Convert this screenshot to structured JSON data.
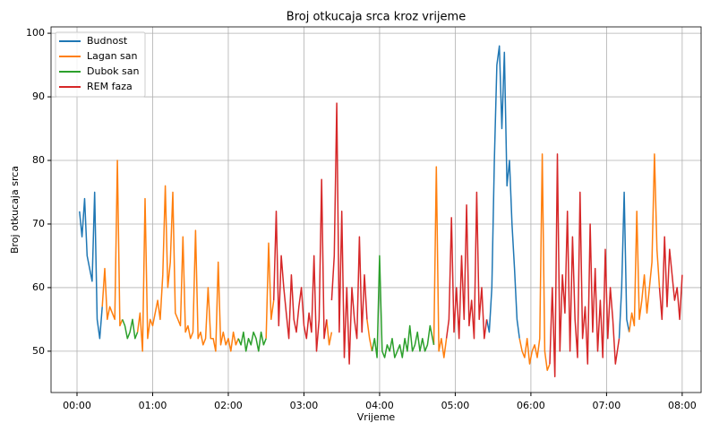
{
  "chart_data": {
    "type": "line",
    "title": "Broj otkucaja srca kroz vrijeme",
    "xlabel": "Vrijeme",
    "ylabel": "Broj otkucaja srca",
    "xlim": [
      -20.6,
      495
    ],
    "ylim": [
      43.5,
      101
    ],
    "xticks": [
      {
        "value": 0,
        "label": "00:00"
      },
      {
        "value": 60,
        "label": "01:00"
      },
      {
        "value": 120,
        "label": "02:00"
      },
      {
        "value": 180,
        "label": "03:00"
      },
      {
        "value": 240,
        "label": "04:00"
      },
      {
        "value": 300,
        "label": "05:00"
      },
      {
        "value": 360,
        "label": "06:00"
      },
      {
        "value": 420,
        "label": "07:00"
      },
      {
        "value": 480,
        "label": "08:00"
      }
    ],
    "yticks": [
      50,
      60,
      70,
      80,
      90,
      100
    ],
    "grid": true,
    "legend": "upper left",
    "series": [
      {
        "name": "Budnost",
        "color": "#1f77b4",
        "x": [
          2,
          4,
          6,
          8,
          10,
          12,
          14,
          16,
          18,
          20,
          null,
          325,
          327,
          329,
          331,
          333,
          335,
          337,
          339,
          341,
          343,
          345,
          347,
          349,
          351,
          null,
          430,
          432,
          434,
          436,
          438
        ],
        "values": [
          72,
          68,
          74,
          65,
          63,
          61,
          75,
          55,
          52,
          57,
          null,
          55,
          53,
          60,
          80,
          95,
          98,
          85,
          97,
          76,
          80,
          70,
          63,
          55,
          52,
          null,
          52,
          60,
          75,
          55,
          53
        ]
      },
      {
        "name": "Lagan san",
        "color": "#ff7f0e",
        "x": [
          20,
          22,
          24,
          26,
          28,
          30,
          32,
          34,
          36,
          null,
          48,
          50,
          52,
          54,
          56,
          58,
          60,
          62,
          64,
          66,
          68,
          70,
          72,
          74,
          76,
          78,
          80,
          82,
          84,
          86,
          88,
          90,
          92,
          94,
          96,
          98,
          100,
          102,
          104,
          106,
          108,
          110,
          112,
          114,
          116,
          118,
          120,
          122,
          124,
          126,
          128,
          null,
          150,
          152,
          154,
          156,
          null,
          198,
          200,
          202,
          null,
          230,
          232,
          234,
          null,
          283,
          285,
          287,
          289,
          291,
          293,
          null,
          351,
          353,
          355,
          357,
          359,
          361,
          363,
          365,
          367,
          369,
          371,
          373,
          375,
          null,
          438,
          440,
          442,
          444,
          446,
          448,
          450,
          452,
          454,
          456,
          458,
          460,
          462
        ],
        "values": [
          57,
          63,
          55,
          57,
          56,
          55,
          80,
          54,
          55,
          null,
          53,
          56,
          50,
          74,
          52,
          55,
          54,
          56,
          58,
          55,
          62,
          76,
          60,
          64,
          75,
          56,
          55,
          54,
          68,
          53,
          54,
          52,
          53,
          69,
          52,
          53,
          51,
          52,
          60,
          52,
          52,
          50,
          64,
          51,
          53,
          51,
          52,
          50,
          53,
          51,
          52,
          null,
          52,
          67,
          55,
          58,
          null,
          55,
          51,
          53,
          null,
          55,
          52,
          50,
          null,
          51,
          79,
          50,
          52,
          49,
          52,
          null,
          52,
          50,
          49,
          52,
          48,
          50,
          51,
          49,
          52,
          81,
          50,
          47,
          48,
          null,
          53,
          56,
          54,
          72,
          55,
          58,
          62,
          56,
          60,
          64,
          81,
          66,
          60
        ]
      },
      {
        "name": "Dubok san",
        "color": "#2ca02c",
        "x": [
          36,
          38,
          40,
          42,
          44,
          46,
          48,
          null,
          128,
          130,
          132,
          134,
          136,
          138,
          140,
          142,
          144,
          146,
          148,
          150,
          null,
          234,
          236,
          238,
          240,
          242,
          244,
          246,
          248,
          250,
          252,
          254,
          256,
          258,
          260,
          262,
          264,
          266,
          268,
          270,
          272,
          274,
          276,
          278,
          280,
          283
        ],
        "values": [
          55,
          54,
          52,
          53,
          55,
          52,
          53,
          null,
          52,
          51,
          53,
          50,
          52,
          51,
          53,
          52,
          50,
          53,
          51,
          52,
          null,
          50,
          52,
          49,
          65,
          50,
          49,
          51,
          50,
          52,
          49,
          50,
          51,
          49,
          52,
          50,
          54,
          50,
          51,
          53,
          50,
          52,
          50,
          51,
          54,
          51
        ]
      },
      {
        "name": "REM faza",
        "color": "#d62728",
        "x": [
          156,
          158,
          160,
          162,
          164,
          166,
          168,
          170,
          172,
          174,
          176,
          178,
          180,
          182,
          184,
          186,
          188,
          190,
          192,
          194,
          196,
          198,
          null,
          202,
          204,
          206,
          208,
          210,
          212,
          214,
          216,
          218,
          220,
          222,
          224,
          226,
          228,
          230,
          null,
          293,
          295,
          297,
          299,
          301,
          303,
          305,
          307,
          309,
          311,
          313,
          315,
          317,
          319,
          321,
          323,
          325,
          null,
          375,
          377,
          379,
          381,
          383,
          385,
          387,
          389,
          391,
          393,
          395,
          397,
          399,
          401,
          403,
          405,
          407,
          409,
          411,
          413,
          415,
          417,
          419,
          421,
          423,
          425,
          427,
          430,
          null,
          462,
          464,
          466,
          468,
          470,
          472,
          474,
          476,
          478,
          480
        ],
        "values": [
          58,
          72,
          54,
          65,
          60,
          56,
          52,
          62,
          55,
          53,
          57,
          60,
          54,
          52,
          56,
          53,
          65,
          50,
          55,
          77,
          52,
          55,
          null,
          58,
          65,
          89,
          53,
          72,
          49,
          60,
          48,
          60,
          55,
          52,
          68,
          53,
          62,
          55,
          null,
          52,
          55,
          71,
          53,
          60,
          52,
          65,
          55,
          73,
          54,
          58,
          52,
          75,
          55,
          60,
          52,
          55,
          null,
          48,
          60,
          46,
          81,
          50,
          62,
          56,
          72,
          50,
          68,
          55,
          49,
          75,
          52,
          57,
          48,
          70,
          53,
          63,
          50,
          58,
          49,
          66,
          52,
          60,
          55,
          48,
          52,
          null,
          60,
          55,
          68,
          57,
          66,
          62,
          58,
          60,
          55,
          62
        ]
      }
    ]
  }
}
